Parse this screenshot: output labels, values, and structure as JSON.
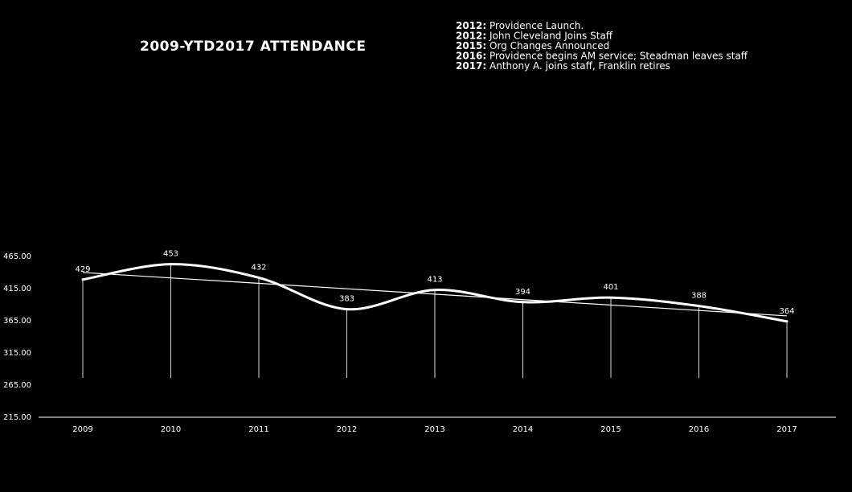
{
  "chart_data": {
    "type": "line",
    "title": "2009-YTD2017  ATTENDANCE",
    "categories": [
      "2009",
      "2010",
      "2011",
      "2012",
      "2013",
      "2014",
      "2015",
      "2016",
      "2017"
    ],
    "values": [
      429,
      453,
      432,
      383,
      413,
      394,
      401,
      388,
      364
    ],
    "value_labels": [
      "429",
      "453",
      "432",
      "383",
      "413",
      "394",
      "401",
      "388",
      "364"
    ],
    "y_ticks": [
      "215.00",
      "265.00",
      "315.00",
      "365.00",
      "415.00",
      "465.00"
    ],
    "ylim": [
      215,
      465
    ],
    "trendline": true,
    "smooth": true,
    "grid": false,
    "background_color": "#000000",
    "line_color": "#ffffff",
    "annotations": [
      {
        "year": "2012:",
        "text": " Providence Launch."
      },
      {
        "year": "2012:",
        "text": " John Cleveland Joins Staff"
      },
      {
        "year": "2015:",
        "text": " Org Changes Announced"
      },
      {
        "year": "2016:",
        "text": " Providence begins AM service; Steadman leaves staff"
      },
      {
        "year": "2017:",
        "text": " Anthony A. joins staff, Franklin retires"
      }
    ]
  }
}
